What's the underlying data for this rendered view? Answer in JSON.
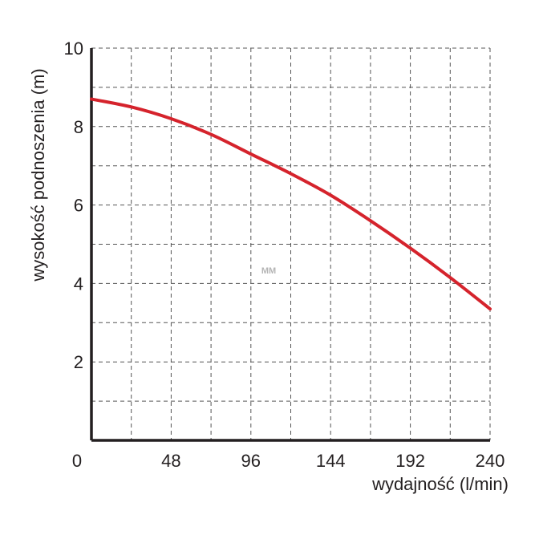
{
  "chart_data": {
    "type": "line",
    "title": "",
    "xlabel": "wydajność (l/min)",
    "ylabel": "wysokość podnoszenia (m)",
    "xlim": [
      0,
      240
    ],
    "ylim": [
      0,
      10
    ],
    "x_ticks": [
      0,
      48,
      96,
      144,
      192,
      240
    ],
    "y_ticks": [
      2,
      4,
      6,
      8,
      10
    ],
    "grid": true,
    "legend": "none",
    "series": [
      {
        "color": "#d5232c",
        "x": [
          0,
          24,
          48,
          72,
          96,
          120,
          144,
          168,
          192,
          216,
          240
        ],
        "y": [
          8.7,
          8.5,
          8.2,
          7.8,
          7.3,
          6.8,
          6.25,
          5.6,
          4.9,
          4.15,
          3.35
        ]
      }
    ]
  },
  "watermark": "MM"
}
